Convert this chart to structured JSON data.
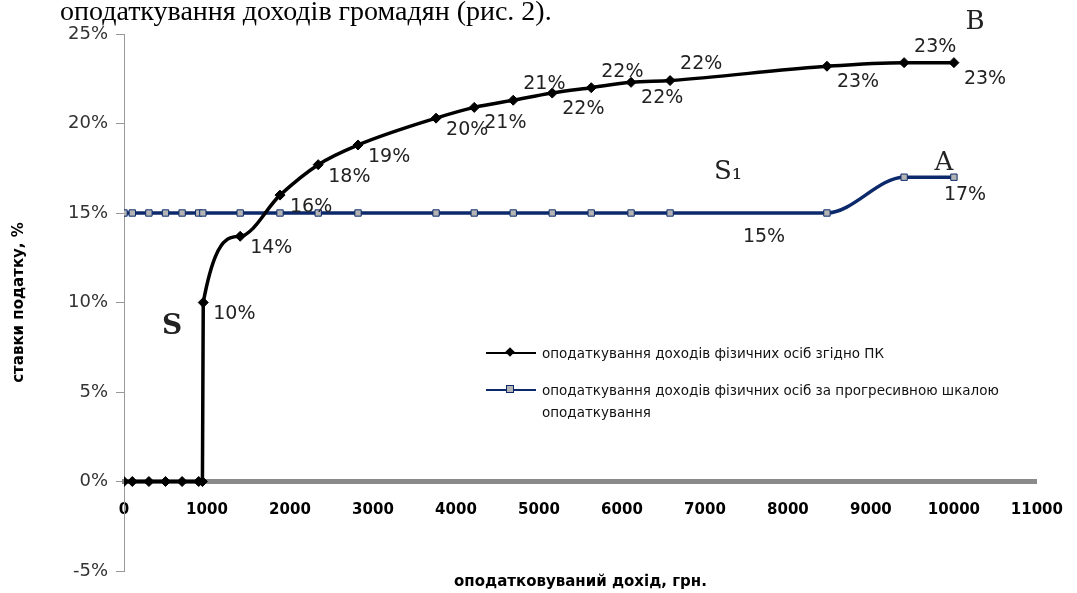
{
  "chart_data": {
    "type": "line",
    "title": "оподаткування доходів громадян (рис. 2).",
    "xlabel": "оподатковуваний дохід, грн.",
    "ylabel": "ставки податку, %",
    "series": [
      {
        "name": "оподаткування доходів фізичних осіб згідно ПК",
        "color": "#000000",
        "marker": "diamond",
        "x": [
          0,
          100,
          300,
          500,
          700,
          900,
          945,
          955,
          1400,
          1880,
          2340,
          2820,
          3760,
          4220,
          4690,
          5160,
          5630,
          6110,
          6580,
          8470,
          9400,
          10000
        ],
        "values": [
          0,
          0,
          0,
          0,
          0,
          0,
          0,
          10,
          13.7,
          16.0,
          17.7,
          18.8,
          20.3,
          20.9,
          21.3,
          21.7,
          22.0,
          22.3,
          22.4,
          23.2,
          23.4,
          23.4
        ],
        "value_labels": [
          null,
          null,
          null,
          null,
          null,
          null,
          null,
          "10%",
          "14%",
          "16%",
          "18%",
          "19%",
          "20%",
          "21%",
          "21%",
          "22%",
          "22%",
          "22%",
          "22%",
          "23%",
          "23%",
          "23%"
        ]
      },
      {
        "name": "оподаткування доходів фізичних осіб за прогресивною шкалою оподаткування",
        "color": "#0c2a6b",
        "marker": "square",
        "x": [
          0,
          100,
          300,
          500,
          700,
          900,
          950,
          1400,
          1880,
          2340,
          2820,
          3760,
          4220,
          4690,
          5160,
          5630,
          6110,
          6580,
          8470,
          9400,
          10000
        ],
        "values": [
          15,
          15,
          15,
          15,
          15,
          15,
          15,
          15,
          15,
          15,
          15,
          15,
          15,
          15,
          15,
          15,
          15,
          15,
          15,
          17,
          17
        ],
        "value_labels": [
          null,
          null,
          null,
          null,
          null,
          null,
          null,
          null,
          null,
          null,
          null,
          null,
          null,
          null,
          null,
          null,
          null,
          null,
          null,
          null,
          "17%"
        ]
      }
    ],
    "xlim": [
      0,
      11000
    ],
    "xticks": [
      0,
      1000,
      2000,
      3000,
      4000,
      5000,
      6000,
      7000,
      8000,
      9000,
      10000,
      11000
    ],
    "ylim": [
      -5,
      25
    ],
    "yticks": [
      {
        "value": -5,
        "label": "-5%"
      },
      {
        "value": 0,
        "label": "0%"
      },
      {
        "value": 5,
        "label": "5%"
      },
      {
        "value": 10,
        "label": "10%"
      },
      {
        "value": 15,
        "label": "15%"
      },
      {
        "value": 20,
        "label": "20%"
      },
      {
        "value": 25,
        "label": "25%"
      }
    ],
    "annotations": [
      "15%",
      "S",
      "S₁",
      "A",
      "B"
    ],
    "legend": "right",
    "grid": false
  }
}
